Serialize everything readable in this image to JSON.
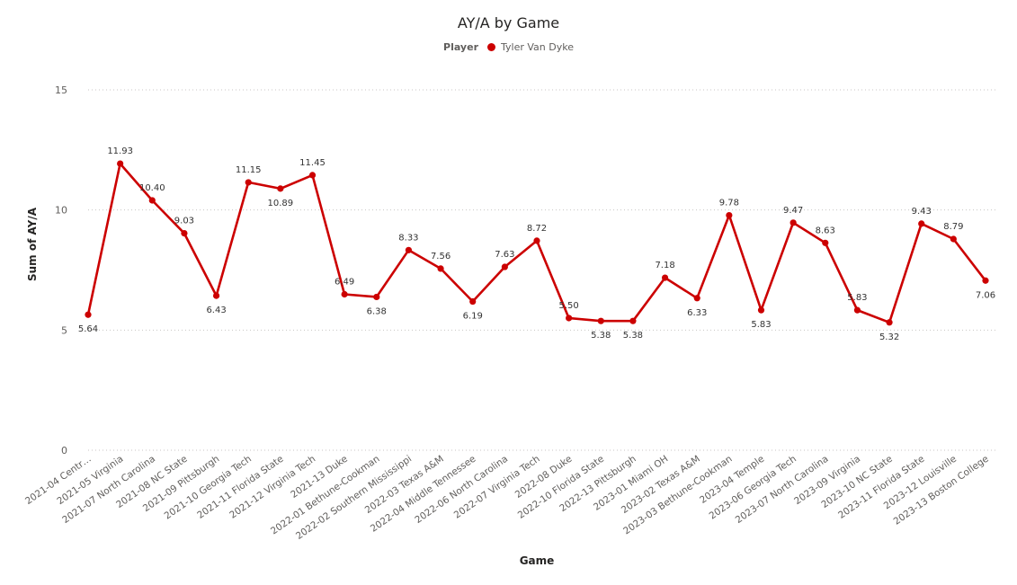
{
  "chart_data": {
    "type": "line",
    "title": "AY/A by Game",
    "legend": {
      "title": "Player",
      "position": "top-center"
    },
    "xlabel": "Game",
    "ylabel": "Sum of AY/A",
    "ylim": [
      0,
      15
    ],
    "yticks": [
      "0",
      "5",
      "10",
      "15"
    ],
    "grid": true,
    "categories": [
      "2021-04 Centr…",
      "2021-05 Virginia",
      "2021-07 North Carolina",
      "2021-08 NC State",
      "2021-09 Pittsburgh",
      "2021-10 Georgia Tech",
      "2021-11 Florida State",
      "2021-12 Virginia Tech",
      "2021-13 Duke",
      "2022-01 Bethune-Cookman",
      "2022-02 Southern Mississippi",
      "2022-03 Texas A&M",
      "2022-04 Middle Tennessee",
      "2022-06 North Carolina",
      "2022-07 Virginia Tech",
      "2022-08 Duke",
      "2022-10 Florida State",
      "2022-13 Pittsburgh",
      "2023-01 Miami OH",
      "2023-02 Texas A&M",
      "2023-03 Bethune-Cookman",
      "2023-04 Temple",
      "2023-06 Georgia Tech",
      "2023-07 North Carolina",
      "2023-09 Virginia",
      "2023-10 NC State",
      "2023-11 Florida State",
      "2023-12 Louisville",
      "2023-13 Boston College"
    ],
    "series": [
      {
        "name": "Tyler Van Dyke",
        "color": "#cc0000",
        "values": [
          5.64,
          11.93,
          10.4,
          9.03,
          6.43,
          11.15,
          10.89,
          11.45,
          6.49,
          6.38,
          8.33,
          7.56,
          6.19,
          7.63,
          8.72,
          5.5,
          5.38,
          5.38,
          7.18,
          6.33,
          9.78,
          5.83,
          9.47,
          8.63,
          5.83,
          5.32,
          9.43,
          8.79,
          7.06
        ],
        "labels": [
          "5.64",
          "11.93",
          "10.40",
          "9.03",
          "6.43",
          "11.15",
          "10.89",
          "11.45",
          "6.49",
          "6.38",
          "8.33",
          "7.56",
          "6.19",
          "7.63",
          "8.72",
          "5.50",
          "5.38",
          "5.38",
          "7.18",
          "6.33",
          "9.78",
          "5.83",
          "9.47",
          "8.63",
          "5.83",
          "5.32",
          "9.43",
          "8.79",
          "7.06"
        ],
        "label_pos": [
          "below",
          "above",
          "above",
          "above",
          "below",
          "above",
          "below",
          "above",
          "above",
          "below",
          "above",
          "above",
          "below",
          "above",
          "above",
          "above",
          "below",
          "below",
          "above",
          "below",
          "above",
          "below",
          "above",
          "above",
          "above",
          "below",
          "above",
          "above",
          "below"
        ]
      }
    ]
  }
}
